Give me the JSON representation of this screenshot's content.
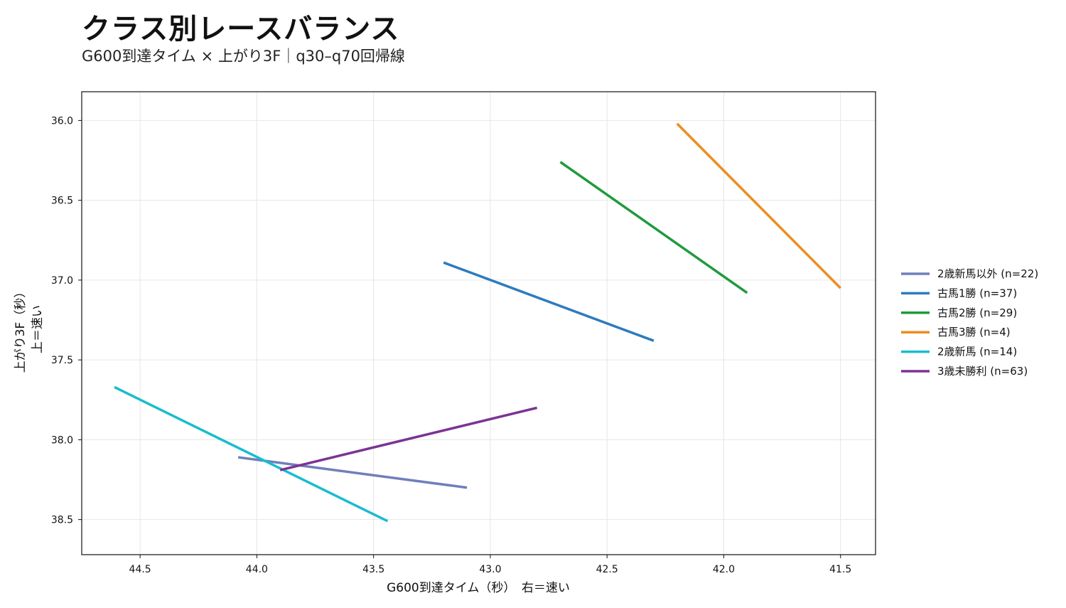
{
  "chart_data": {
    "type": "line",
    "title": "クラス別レースバランス",
    "subtitle": "G600到達タイム × 上がり3F｜q30–q70回帰線",
    "xlabel": "G600到達タイム（秒）　右＝速い",
    "ylabel_lines": [
      "上がり3F（秒）",
      "上＝速い"
    ],
    "xlim": [
      44.75,
      41.35
    ],
    "ylim": [
      38.72,
      35.82
    ],
    "x_reversed": true,
    "y_reversed": true,
    "xticks": [
      44.5,
      44.0,
      43.5,
      43.0,
      42.5,
      42.0,
      41.5
    ],
    "yticks": [
      36.0,
      36.5,
      37.0,
      37.5,
      38.0,
      38.5
    ],
    "grid": true,
    "legend_position": "right",
    "series": [
      {
        "name": "2歳新馬以外  (n=22)",
        "color": "#6f7fbc",
        "x": [
          44.08,
          43.1
        ],
        "y": [
          38.11,
          38.3
        ]
      },
      {
        "name": "古馬1勝  (n=37)",
        "color": "#2e7bbd",
        "x": [
          43.2,
          42.3
        ],
        "y": [
          36.89,
          37.38
        ]
      },
      {
        "name": "古馬2勝  (n=29)",
        "color": "#1f9a3d",
        "x": [
          42.7,
          41.9
        ],
        "y": [
          36.26,
          37.08
        ]
      },
      {
        "name": "古馬3勝  (n=4)",
        "color": "#ee8c22",
        "x": [
          42.2,
          41.5
        ],
        "y": [
          36.02,
          37.05
        ]
      },
      {
        "name": "2歳新馬  (n=14)",
        "color": "#19bccf",
        "x": [
          44.61,
          43.44
        ],
        "y": [
          37.67,
          38.51
        ]
      },
      {
        "name": "3歳未勝利  (n=63)",
        "color": "#7b3394",
        "x": [
          43.9,
          42.8
        ],
        "y": [
          38.19,
          37.8
        ]
      }
    ]
  }
}
